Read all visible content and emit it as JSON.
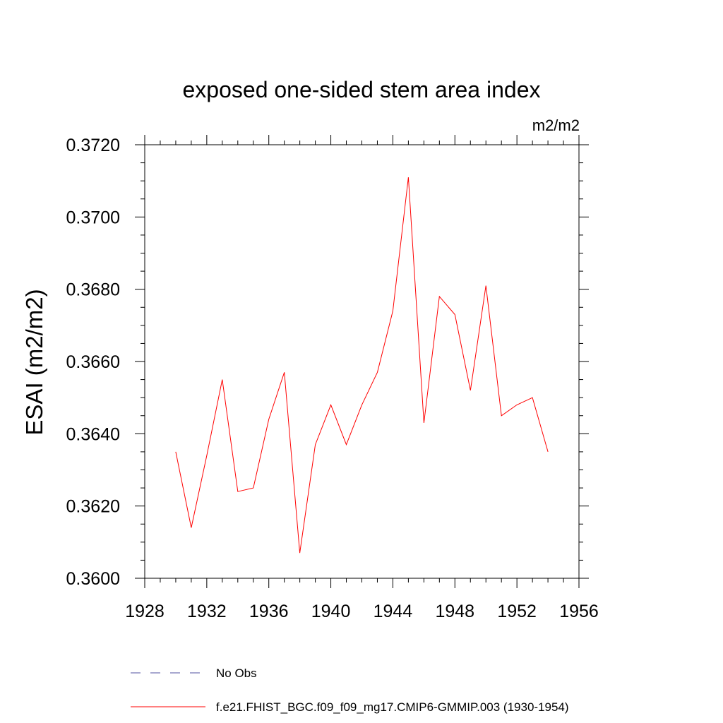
{
  "chart_data": {
    "type": "line",
    "title": "exposed one-sided stem area index",
    "units_label": "m2/m2",
    "xlabel": "",
    "ylabel": "ESAI  (m2/m2)",
    "xlim": [
      1928,
      1956
    ],
    "ylim": [
      0.36,
      0.372
    ],
    "x_ticks": [
      "1928",
      "1932",
      "1936",
      "1940",
      "1944",
      "1948",
      "1952",
      "1956"
    ],
    "y_ticks": [
      "0.3600",
      "0.3620",
      "0.3640",
      "0.3660",
      "0.3680",
      "0.3700",
      "0.3720"
    ],
    "grid": false,
    "legend_position": "bottom",
    "series": [
      {
        "name": "f.e21.FHIST_BGC.f09_f09_mg17.CMIP6-GMMIP.003 (1930-1954)",
        "color": "#ff0000",
        "dash": "solid",
        "x": [
          1930,
          1931,
          1932,
          1933,
          1934,
          1935,
          1936,
          1937,
          1938,
          1939,
          1940,
          1941,
          1942,
          1943,
          1944,
          1945,
          1946,
          1947,
          1948,
          1949,
          1950,
          1951,
          1952,
          1953,
          1954
        ],
        "values": [
          0.3635,
          0.3614,
          0.3634,
          0.3655,
          0.3624,
          0.3625,
          0.3644,
          0.3657,
          0.3607,
          0.3637,
          0.3648,
          0.3637,
          0.3648,
          0.3657,
          0.3674,
          0.3711,
          0.3643,
          0.3678,
          0.3673,
          0.3652,
          0.3681,
          0.3645,
          0.3648,
          0.365,
          0.3635
        ]
      }
    ],
    "legend": [
      {
        "label": "No Obs",
        "color": "#5050a0",
        "dash": "dashed"
      },
      {
        "label": "f.e21.FHIST_BGC.f09_f09_mg17.CMIP6-GMMIP.003 (1930-1954)",
        "color": "#ff0000",
        "dash": "solid"
      }
    ]
  }
}
